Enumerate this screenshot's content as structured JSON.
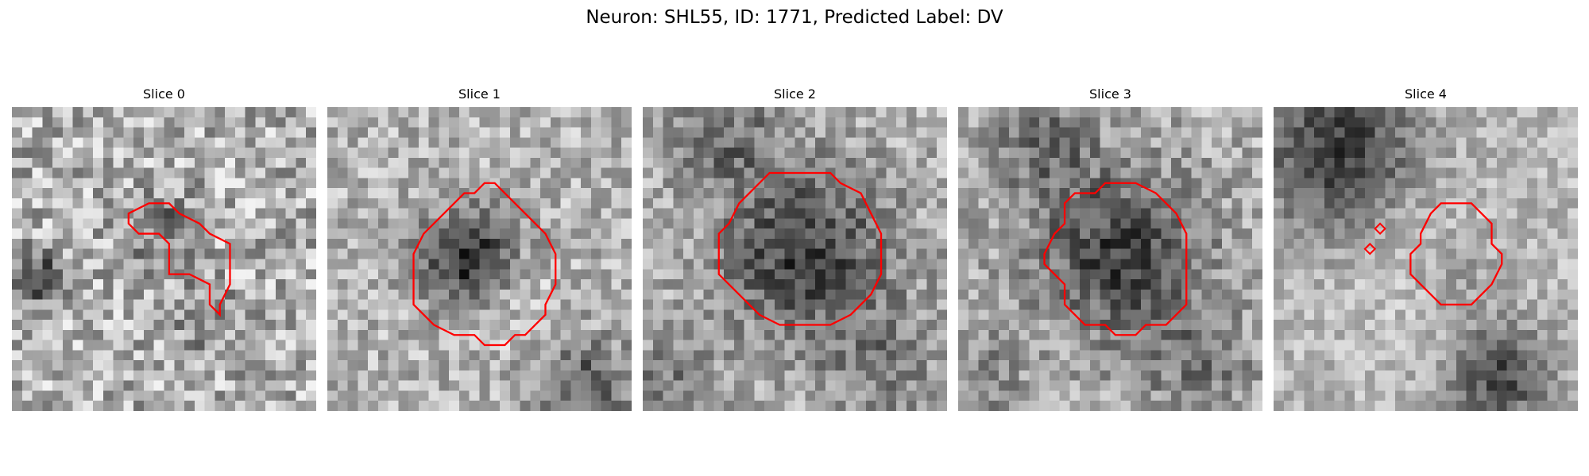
{
  "figure": {
    "title": "Neuron: SHL55, ID: 1771, Predicted Label: DV"
  },
  "slices": [
    {
      "title": "Slice 0",
      "seed": 11,
      "style": "noise"
    },
    {
      "title": "Slice 1",
      "seed": 23,
      "style": "dark-blob"
    },
    {
      "title": "Slice 2",
      "seed": 37,
      "style": "dark-center"
    },
    {
      "title": "Slice 3",
      "seed": 51,
      "style": "dark-center"
    },
    {
      "title": "Slice 4",
      "seed": 67,
      "style": "bright-band"
    }
  ],
  "colors": {
    "contour": "#ff0000",
    "background": "#ffffff",
    "colormap": "gray"
  }
}
